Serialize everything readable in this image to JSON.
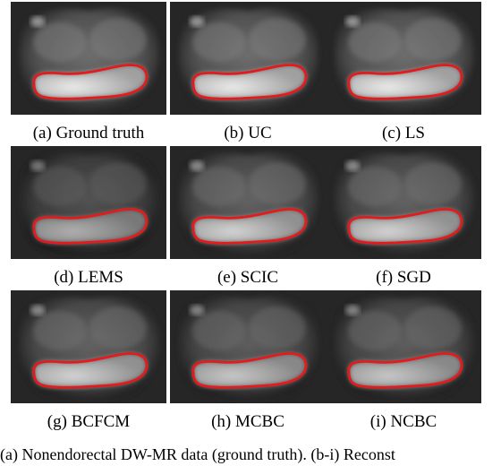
{
  "panels": [
    {
      "caption": "(a) Ground truth",
      "contour_color": "#e41a1c",
      "brightness": 1.0
    },
    {
      "caption": "(b) UC",
      "contour_color": "#e41a1c",
      "brightness": 1.0
    },
    {
      "caption": "(c) LS",
      "contour_color": "#e41a1c",
      "brightness": 1.0
    },
    {
      "caption": "(d) LEMS",
      "contour_color": "#e41a1c",
      "brightness": 0.75
    },
    {
      "caption": "(e) SCIC",
      "contour_color": "#e41a1c",
      "brightness": 0.9
    },
    {
      "caption": "(f) SGD",
      "contour_color": "#e41a1c",
      "brightness": 0.9
    },
    {
      "caption": "(g) BCFCM",
      "contour_color": "#e41a1c",
      "brightness": 0.9
    },
    {
      "caption": "(h) MCBC",
      "contour_color": "#e41a1c",
      "brightness": 0.85
    },
    {
      "caption": "(i) NCBC",
      "contour_color": "#e41a1c",
      "brightness": 0.85
    }
  ],
  "figure_caption": "(a) Nonendorectal DW-MR data (ground truth). (b-i) Reconst"
}
